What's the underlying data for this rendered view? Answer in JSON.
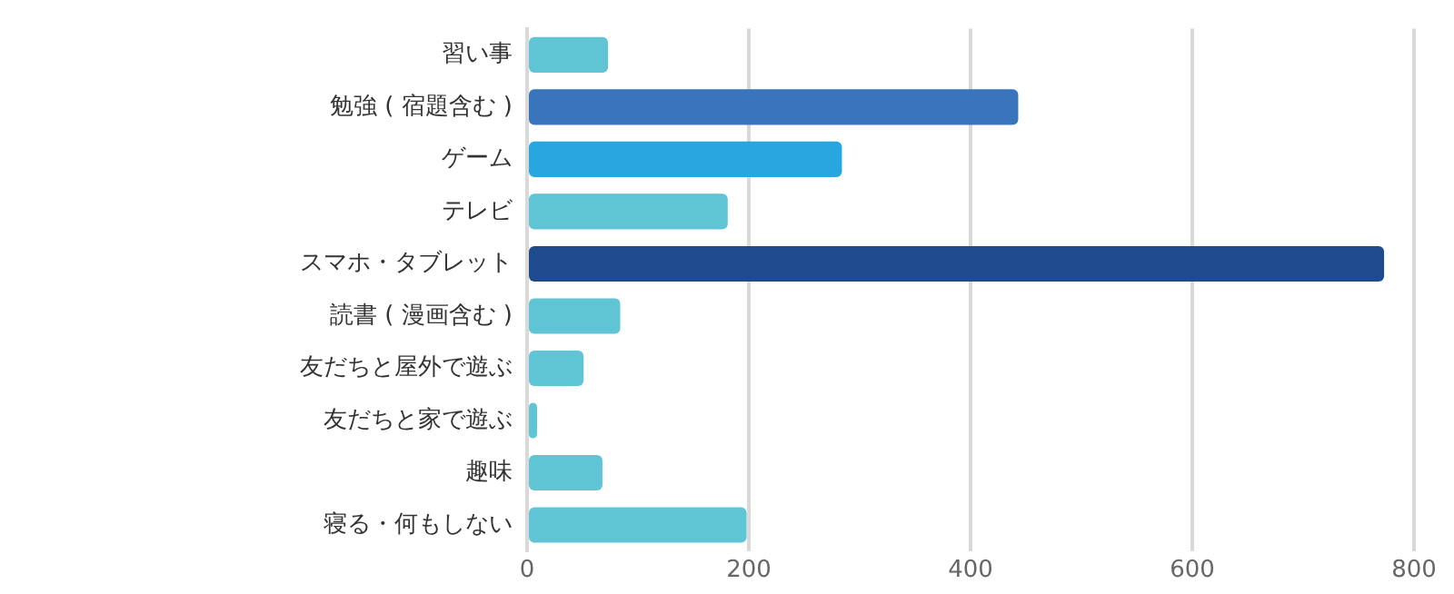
{
  "chart_data": {
    "type": "bar",
    "orientation": "horizontal",
    "categories": [
      "習い事",
      "勉強 ( 宿題含む )",
      "ゲーム",
      "テレビ",
      "スマホ・タブレット",
      "読書 ( 漫画含む )",
      "友だちと屋外で遊ぶ",
      "友だちと家で遊ぶ",
      "趣味",
      "寝る・何もしない"
    ],
    "values": [
      73,
      443,
      284,
      181,
      773,
      84,
      51,
      9,
      68,
      198
    ],
    "colors": [
      "#5fc4d4",
      "#3a74bc",
      "#27a6e0",
      "#5fc4d4",
      "#1e4a8e",
      "#5fc4d4",
      "#5fc4d4",
      "#5fc4d4",
      "#5fc4d4",
      "#5fc4d4"
    ],
    "xlim": [
      0,
      800
    ],
    "xticks": [
      0,
      200,
      400,
      600,
      800
    ],
    "grid": "x",
    "legend": false
  }
}
